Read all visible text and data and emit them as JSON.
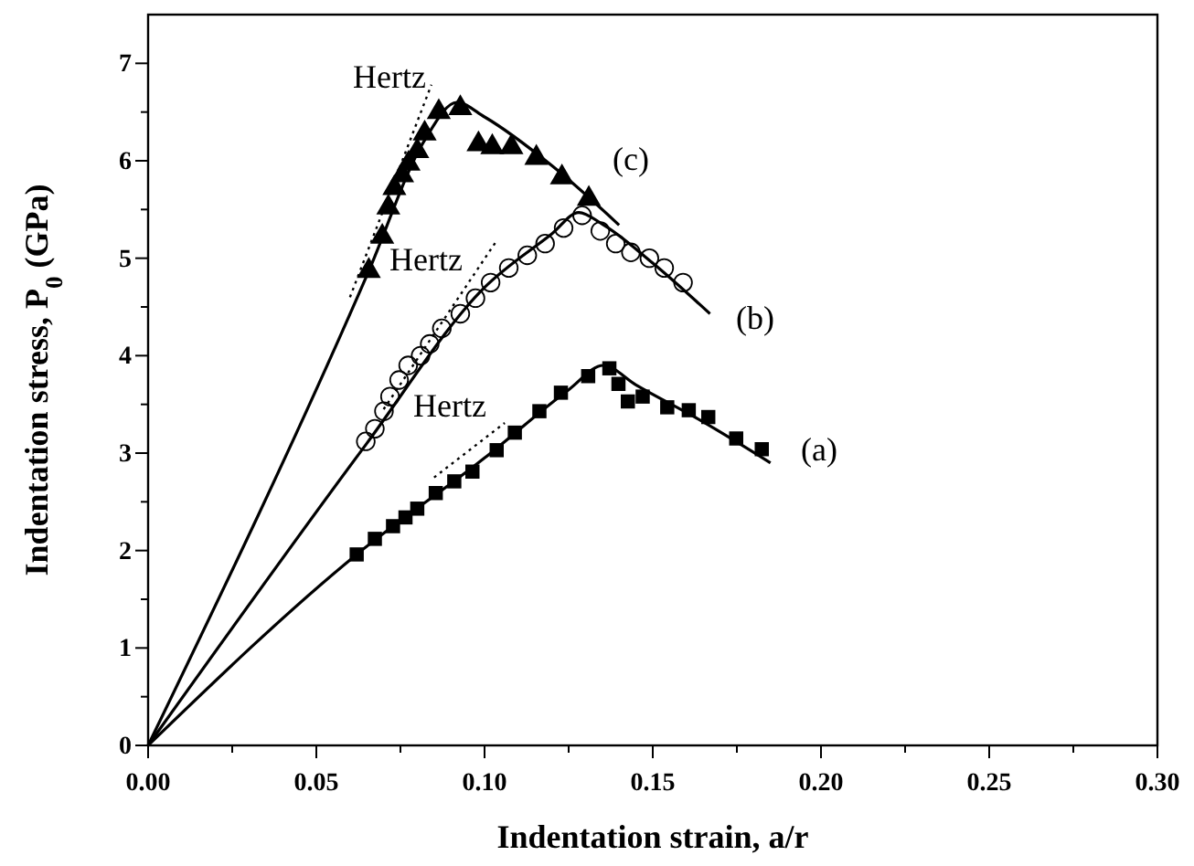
{
  "chart_data": {
    "type": "scatter",
    "xlabel": "Indentation strain, a/r",
    "ylabel": "Indentation stress, P$_{0}$ (GPa)",
    "xlim": [
      0,
      0.3
    ],
    "ylim": [
      0,
      7.5
    ],
    "xticks": [
      {
        "value": 0,
        "label": "0.00"
      },
      {
        "value": 0.025,
        "label": null
      },
      {
        "value": 0.05,
        "label": "0.05"
      },
      {
        "value": 0.075,
        "label": null
      },
      {
        "value": 0.1,
        "label": "0.10"
      },
      {
        "value": 0.125,
        "label": null
      },
      {
        "value": 0.15,
        "label": "0.15"
      },
      {
        "value": 0.175,
        "label": null
      },
      {
        "value": 0.2,
        "label": "0.20"
      },
      {
        "value": 0.225,
        "label": null
      },
      {
        "value": 0.25,
        "label": "0.25"
      },
      {
        "value": 0.275,
        "label": null
      },
      {
        "value": 0.3,
        "label": "0.30"
      }
    ],
    "yticks": [
      0,
      {
        "value": 0.5,
        "label": null
      },
      1,
      {
        "value": 1.5,
        "label": null
      },
      2,
      {
        "value": 2.5,
        "label": null
      },
      3,
      {
        "value": 3.5,
        "label": null
      },
      4,
      {
        "value": 4.5,
        "label": null
      },
      5,
      {
        "value": 5.5,
        "label": null
      },
      6,
      {
        "value": 6.5,
        "label": null
      },
      7
    ],
    "grid": false,
    "series": [
      {
        "type": "scatter",
        "marker": "square",
        "color": "#000000",
        "x": [
          0.062,
          0.0674,
          0.0728,
          0.0765,
          0.08,
          0.0855,
          0.091,
          0.0964,
          0.1036,
          0.109,
          0.1163,
          0.1227,
          0.1308,
          0.1371,
          0.1398,
          0.1426,
          0.147,
          0.1543,
          0.1607,
          0.1665,
          0.1748,
          0.1824
        ],
        "values": [
          1.96,
          2.12,
          2.25,
          2.34,
          2.43,
          2.59,
          2.71,
          2.81,
          3.03,
          3.21,
          3.43,
          3.62,
          3.79,
          3.87,
          3.71,
          3.53,
          3.58,
          3.47,
          3.44,
          3.37,
          3.15,
          3.04
        ]
      },
      {
        "type": "scatter",
        "marker": "circle",
        "color": "#000000",
        "x": [
          0.0647,
          0.0674,
          0.0701,
          0.0719,
          0.0746,
          0.0773,
          0.081,
          0.0837,
          0.0873,
          0.0928,
          0.0973,
          0.1018,
          0.1072,
          0.1127,
          0.118,
          0.1235,
          0.129,
          0.1344,
          0.139,
          0.1435,
          0.149,
          0.1534,
          0.159
        ],
        "values": [
          3.12,
          3.25,
          3.43,
          3.58,
          3.75,
          3.9,
          4.0,
          4.12,
          4.28,
          4.43,
          4.59,
          4.75,
          4.9,
          5.03,
          5.15,
          5.31,
          5.44,
          5.28,
          5.15,
          5.06,
          5.0,
          4.9,
          4.75
        ]
      },
      {
        "type": "scatter",
        "marker": "triangle",
        "color": "#000000",
        "x": [
          0.0656,
          0.0696,
          0.0714,
          0.0732,
          0.0755,
          0.0774,
          0.08,
          0.0822,
          0.0864,
          0.0928,
          0.0982,
          0.1023,
          0.108,
          0.1154,
          0.123,
          0.131
        ],
        "values": [
          4.87,
          5.22,
          5.52,
          5.72,
          5.85,
          5.97,
          6.1,
          6.28,
          6.5,
          6.54,
          6.17,
          6.14,
          6.14,
          6.03,
          5.83,
          5.61
        ]
      },
      {
        "type": "line",
        "line_style": "solid",
        "color": "#000000",
        "x": [
          0,
          0.062,
          0.1,
          0.125,
          0.1353,
          0.145,
          0.165,
          0.185
        ],
        "values": [
          0,
          1.96,
          2.95,
          3.65,
          3.9,
          3.7,
          3.32,
          2.9
        ]
      },
      {
        "type": "line",
        "line_style": "solid",
        "color": "#000000",
        "x": [
          0,
          0.065,
          0.1,
          0.12,
          0.128,
          0.135,
          0.15,
          0.167
        ],
        "values": [
          0,
          3.1,
          4.7,
          5.25,
          5.47,
          5.35,
          4.95,
          4.43
        ]
      },
      {
        "type": "line",
        "line_style": "solid",
        "color": "#000000",
        "x": [
          0,
          0.0656,
          0.082,
          0.0918,
          0.1,
          0.12,
          0.14
        ],
        "values": [
          0,
          4.87,
          6.2,
          6.6,
          6.45,
          5.95,
          5.34
        ]
      },
      {
        "type": "line",
        "line_style": "dotted",
        "color": "#000000",
        "x": [
          0.085,
          0.106
        ],
        "values": [
          2.75,
          3.31
        ]
      },
      {
        "type": "line",
        "line_style": "dotted",
        "color": "#000000",
        "x": [
          0.07,
          0.1036
        ],
        "values": [
          3.45,
          5.18
        ]
      },
      {
        "type": "line",
        "line_style": "dotted",
        "color": "#000000",
        "x": [
          0.06,
          0.0842
        ],
        "values": [
          4.6,
          6.78
        ]
      }
    ],
    "annotations": [
      "Hertz",
      "Hertz",
      "Hertz",
      "(c)",
      "(b)",
      "(a)"
    ]
  }
}
